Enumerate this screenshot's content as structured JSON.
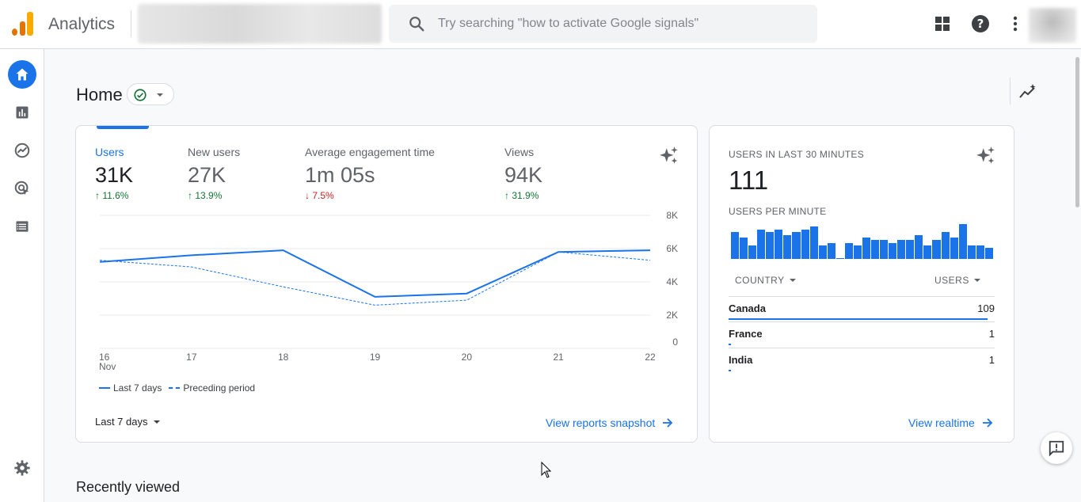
{
  "app": {
    "title": "Analytics"
  },
  "search": {
    "placeholder": "Try searching \"how to activate Google signals\""
  },
  "header": {
    "page_title": "Home"
  },
  "overview": {
    "metrics": [
      {
        "label": "Users",
        "value": "31K",
        "delta": "11.6%",
        "direction": "up",
        "active": true
      },
      {
        "label": "New users",
        "value": "27K",
        "delta": "13.9%",
        "direction": "up"
      },
      {
        "label": "Average engagement time",
        "value": "1m 05s",
        "delta": "7.5%",
        "direction": "down"
      },
      {
        "label": "Views",
        "value": "94K",
        "delta": "31.9%",
        "direction": "up"
      }
    ],
    "period_label": "Last 7 days",
    "view_link": "View reports snapshot"
  },
  "chart_data": {
    "type": "line",
    "x": [
      "16",
      "17",
      "18",
      "19",
      "20",
      "21",
      "22"
    ],
    "x_sublabel": "Nov",
    "ylim": [
      0,
      8000
    ],
    "y_ticks": [
      "8K",
      "6K",
      "4K",
      "2K",
      "0"
    ],
    "series": [
      {
        "name": "Last 7 days",
        "values": [
          5200,
          5600,
          5900,
          3100,
          3300,
          5800,
          5900
        ]
      },
      {
        "name": "Preceding period",
        "values": [
          5300,
          4900,
          3700,
          2600,
          2900,
          5800,
          5300
        ]
      }
    ],
    "grid": true,
    "legend": "bottom-left"
  },
  "realtime": {
    "title": "USERS IN LAST 30 MINUTES",
    "count": "111",
    "per_minute_label": "USERS PER MINUTE",
    "per_minute": [
      5,
      4,
      2.5,
      5.5,
      5,
      5.5,
      4.5,
      5,
      5.5,
      6,
      2.5,
      3,
      0.2,
      3,
      2.5,
      4,
      3.5,
      3.5,
      3,
      3.5,
      3.5,
      4.5,
      2.5,
      3.5,
      5,
      4,
      6.5,
      2.5,
      2.5,
      2
    ],
    "columns": {
      "country": "COUNTRY",
      "users": "USERS"
    },
    "rows": [
      {
        "country": "Canada",
        "users": "109",
        "fraction": 0.99
      },
      {
        "country": "France",
        "users": "1",
        "fraction": 0.01
      },
      {
        "country": "India",
        "users": "1",
        "fraction": 0.01
      }
    ],
    "view_link": "View realtime"
  },
  "recent": {
    "title": "Recently viewed"
  },
  "colors": {
    "accent": "#1a73e8",
    "positive": "#137333",
    "negative": "#c5221f",
    "logo": "#f9ab00"
  }
}
